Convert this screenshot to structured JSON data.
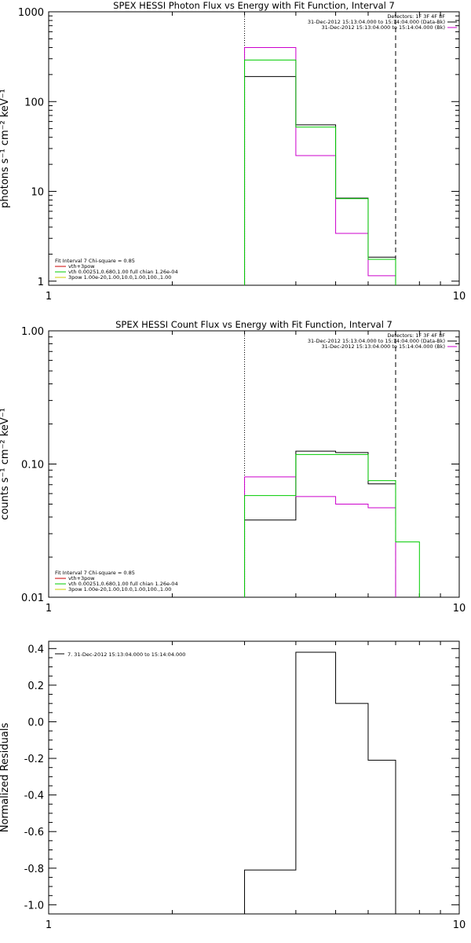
{
  "chart_data": [
    {
      "type": "line",
      "step": true,
      "title": "SPEX HESSI Photon Flux vs Energy with Fit Function, Interval 7",
      "ylabel": "photons s⁻¹ cm⁻² keV⁻¹",
      "xlabel": "",
      "xscale": "log",
      "yscale": "log",
      "xlim": [
        1,
        10
      ],
      "ylim": [
        0.9,
        1000
      ],
      "xticks": [
        {
          "v": 1,
          "label": "1"
        },
        {
          "v": 10,
          "label": "10"
        }
      ],
      "yticks": [
        {
          "v": 1,
          "label": "1"
        },
        {
          "v": 10,
          "label": "10"
        },
        {
          "v": 100,
          "label": "100"
        },
        {
          "v": 1000,
          "label": "1000"
        }
      ],
      "vlines": [
        {
          "x": 3.0,
          "style": "dotted"
        },
        {
          "x": 7.0,
          "style": "dashed"
        }
      ],
      "bin_edges": [
        3.0,
        4.0,
        5.0,
        6.0,
        7.0
      ],
      "series": [
        {
          "color": "#000000",
          "values": [
            190,
            55,
            8.4,
            1.85
          ]
        },
        {
          "color": "#cc00cc",
          "values": [
            400,
            25,
            3.4,
            1.15
          ]
        },
        {
          "color": "#00cc00",
          "values": [
            290,
            52,
            8.3,
            1.75
          ]
        }
      ],
      "legend_tr": [
        "Detectors: 1F 3F 4F 8F",
        "31-Dec-2012 15:13:04.000 to 15:14:04.000 (Data-Bk)",
        "31-Dec-2012 15:13:04.000 to 15:14:04.000 (Bk)"
      ],
      "legend_bl": [
        {
          "text": "Fit Interval  7   Chi-square = 0.85",
          "color": null
        },
        {
          "text": "vth+3pow",
          "color": "#cc0000"
        },
        {
          "text": "vth 0.00251,0.680,1.00   full chian 1.26e-04",
          "color": "#00cc00"
        },
        {
          "text": "3pow 1.00e-20,1.00,10.0,1.00,100.,1.00",
          "color": "#cccc00"
        }
      ]
    },
    {
      "type": "line",
      "step": true,
      "title": "SPEX HESSI Count Flux vs Energy with Fit Function, Interval 7",
      "ylabel": "counts s⁻¹ cm⁻² keV⁻¹",
      "xlabel": "",
      "xscale": "log",
      "yscale": "log",
      "xlim": [
        1,
        10
      ],
      "ylim": [
        0.01,
        1.0
      ],
      "xticks": [
        {
          "v": 1,
          "label": "1"
        },
        {
          "v": 10,
          "label": "10"
        }
      ],
      "yticks": [
        {
          "v": 0.01,
          "label": "0.01"
        },
        {
          "v": 0.1,
          "label": "0.10"
        },
        {
          "v": 1.0,
          "label": "1.00"
        }
      ],
      "vlines": [
        {
          "x": 3.0,
          "style": "dotted"
        },
        {
          "x": 7.0,
          "style": "dashed"
        }
      ],
      "bin_edges": [
        3.0,
        4.0,
        5.0,
        6.0,
        7.0,
        8.0
      ],
      "series": [
        {
          "color": "#000000",
          "values": [
            0.038,
            0.125,
            0.122,
            0.071
          ]
        },
        {
          "color": "#cc00cc",
          "values": [
            0.08,
            0.057,
            0.05,
            0.047
          ]
        },
        {
          "color": "#00cc00",
          "values": [
            0.058,
            0.118,
            0.118,
            0.075,
            0.026
          ]
        }
      ],
      "legend_tr": [
        "Detectors: 1F 3F 4F 8F",
        "31-Dec-2012 15:13:04.000 to 15:14:04.000 (Data-Bk)",
        "31-Dec-2012 15:13:04.000 to 15:14:04.000 (Bk)"
      ],
      "legend_bl": [
        {
          "text": "Fit Interval  7   Chi-square = 0.85",
          "color": null
        },
        {
          "text": "vth+3pow",
          "color": "#cc0000"
        },
        {
          "text": "vth 0.00251,0.680,1.00   full chian 1.26e-04",
          "color": "#00cc00"
        },
        {
          "text": "3pow 1.00e-20,1.00,10.0,1.00,100.,1.00",
          "color": "#cccc00"
        }
      ]
    },
    {
      "type": "line",
      "step": true,
      "title": "",
      "ylabel": "Normalized Residuals",
      "xlabel": "",
      "xscale": "log",
      "yscale": "linear",
      "xlim": [
        1,
        10
      ],
      "ylim": [
        -1.05,
        0.44
      ],
      "xticks": [
        {
          "v": 1,
          "label": "1"
        },
        {
          "v": 10,
          "label": "10"
        }
      ],
      "yticks": [
        {
          "v": 0.4,
          "label": "0.4"
        },
        {
          "v": 0.2,
          "label": "0.2"
        },
        {
          "v": 0.0,
          "label": "0.0"
        },
        {
          "v": -0.2,
          "label": "-0.2"
        },
        {
          "v": -0.4,
          "label": "-0.4"
        },
        {
          "v": -0.6,
          "label": "-0.6"
        },
        {
          "v": -0.8,
          "label": "-0.8"
        },
        {
          "v": -1.0,
          "label": "-1.0"
        }
      ],
      "vlines": [],
      "bin_edges": [
        3.0,
        4.0,
        5.0,
        6.0,
        7.0
      ],
      "series": [
        {
          "color": "#000000",
          "values": [
            -0.81,
            0.38,
            0.1,
            -0.21
          ]
        }
      ],
      "legend_tr": [],
      "legend_resid": "7. 31-Dec-2012 15:13:04.000 to 15:14:04.000",
      "legend_bl": []
    }
  ]
}
